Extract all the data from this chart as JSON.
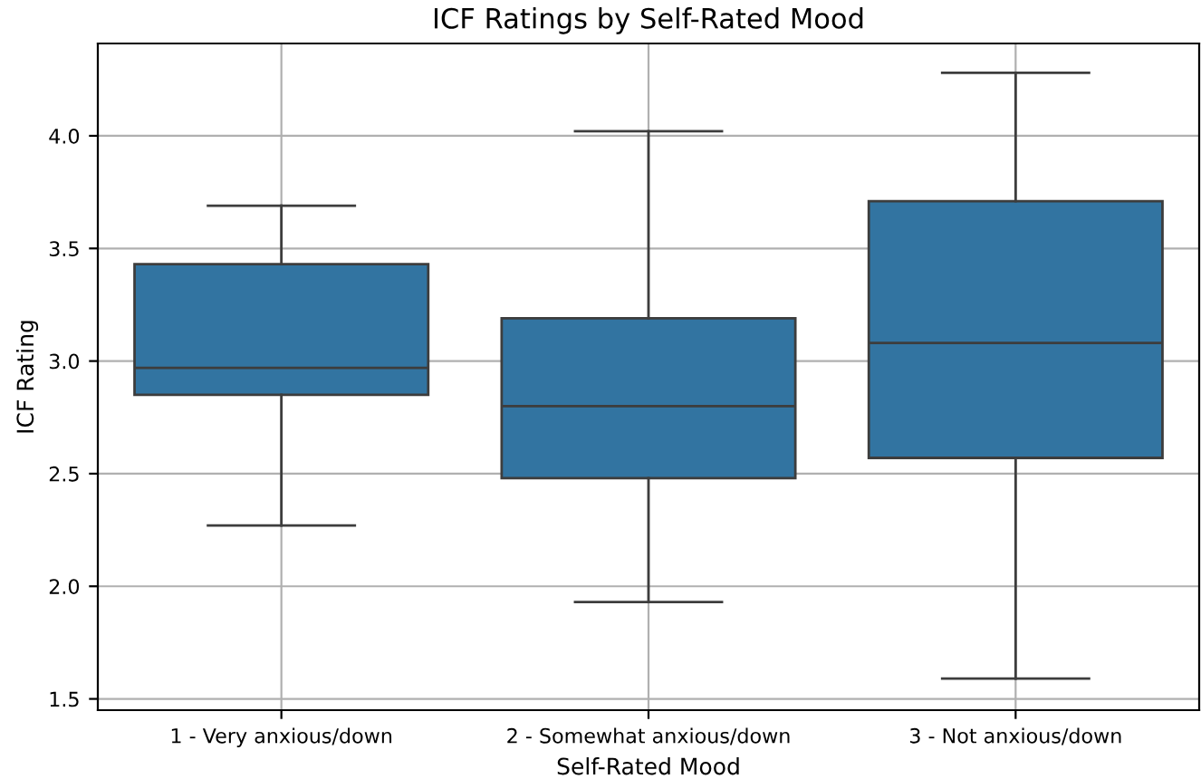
{
  "chart_data": {
    "type": "box",
    "title": "ICF Ratings by Self-Rated Mood",
    "xlabel": "Self-Rated Mood",
    "ylabel": "ICF Rating",
    "categories": [
      "1 - Very anxious/down",
      "2 - Somewhat anxious/down",
      "3 - Not anxious/down"
    ],
    "boxes": [
      {
        "low": 2.27,
        "q1": 2.85,
        "median": 2.97,
        "q3": 3.43,
        "high": 3.69
      },
      {
        "low": 1.93,
        "q1": 2.48,
        "median": 2.8,
        "q3": 3.19,
        "high": 4.02
      },
      {
        "low": 1.59,
        "q1": 2.57,
        "median": 3.08,
        "q3": 3.71,
        "high": 4.28
      }
    ],
    "color": "#3274a1",
    "ylim": [
      1.45,
      4.41
    ],
    "yticks": [
      1.5,
      {
        "value": 2,
        "label": "2.0"
      },
      2.5,
      {
        "value": 3,
        "label": "3.0"
      },
      3.5,
      {
        "value": 4,
        "label": "4.0"
      }
    ],
    "grid": true
  }
}
